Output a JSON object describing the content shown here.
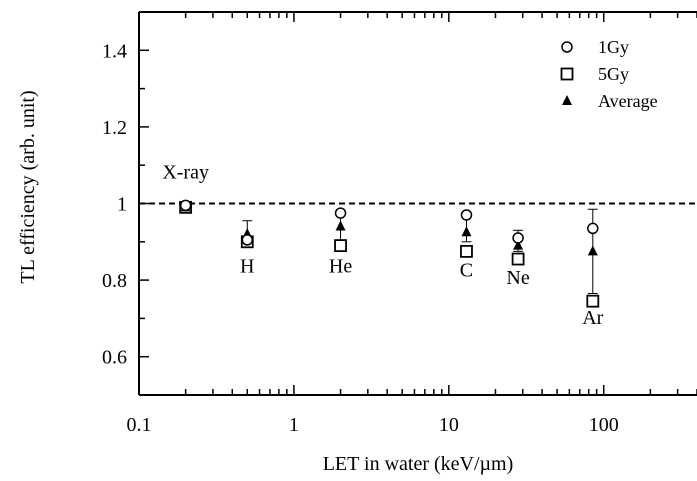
{
  "chart_data": {
    "type": "scatter",
    "title": "",
    "xlabel": "LET in water (keV/µm)",
    "ylabel": "TL efficiency (arb. unit)",
    "xscale": "log",
    "xlim": [
      0.1,
      400
    ],
    "ylim": [
      0.5,
      1.5
    ],
    "x_tick_values": [
      0.1,
      1,
      10,
      100
    ],
    "x_tick_labels": [
      "0.1",
      "1",
      "10",
      "100"
    ],
    "y_tick_values": [
      0.6,
      0.8,
      1.0,
      1.2,
      1.4
    ],
    "y_tick_labels": [
      "0.6",
      "0.8",
      "1",
      "1.2",
      "1.4"
    ],
    "grid": false,
    "legend_position": "top-right",
    "reference_line": {
      "y": 1.0,
      "style": "dashed"
    },
    "series": [
      {
        "name": "1Gy",
        "marker": "circle-open",
        "points": [
          {
            "x": 0.2,
            "y": 0.995
          },
          {
            "x": 0.5,
            "y": 0.905
          },
          {
            "x": 2,
            "y": 0.975
          },
          {
            "x": 13,
            "y": 0.97
          },
          {
            "x": 28,
            "y": 0.91
          },
          {
            "x": 85,
            "y": 0.935
          }
        ]
      },
      {
        "name": "5Gy",
        "marker": "square-open",
        "points": [
          {
            "x": 0.2,
            "y": 0.99
          },
          {
            "x": 0.5,
            "y": 0.9
          },
          {
            "x": 2,
            "y": 0.89
          },
          {
            "x": 13,
            "y": 0.875
          },
          {
            "x": 28,
            "y": 0.855
          },
          {
            "x": 85,
            "y": 0.745
          }
        ]
      },
      {
        "name": "Average",
        "marker": "triangle-filled",
        "points": [
          {
            "x": 0.2,
            "y": 0.99
          },
          {
            "x": 0.5,
            "y": 0.92
          },
          {
            "x": 2,
            "y": 0.94
          },
          {
            "x": 13,
            "y": 0.925
          },
          {
            "x": 28,
            "y": 0.89
          },
          {
            "x": 85,
            "y": 0.875
          }
        ]
      }
    ],
    "error_bars": [
      {
        "x": 0.5,
        "low": 0.905,
        "high": 0.955
      },
      {
        "x": 2,
        "low": 0.905,
        "high": 0.975
      },
      {
        "x": 13,
        "low": 0.9,
        "high": 0.97
      },
      {
        "x": 28,
        "low": 0.875,
        "high": 0.93
      },
      {
        "x": 85,
        "low": 0.765,
        "high": 0.985
      }
    ],
    "annotations": [
      {
        "text": "X-ray",
        "x": 0.2,
        "y": 1.065
      },
      {
        "text": "H",
        "x": 0.5,
        "y": 0.82
      },
      {
        "text": "He",
        "x": 2,
        "y": 0.82
      },
      {
        "text": "C",
        "x": 13,
        "y": 0.81
      },
      {
        "text": "Ne",
        "x": 28,
        "y": 0.79
      },
      {
        "text": "Ar",
        "x": 85,
        "y": 0.685
      }
    ]
  }
}
